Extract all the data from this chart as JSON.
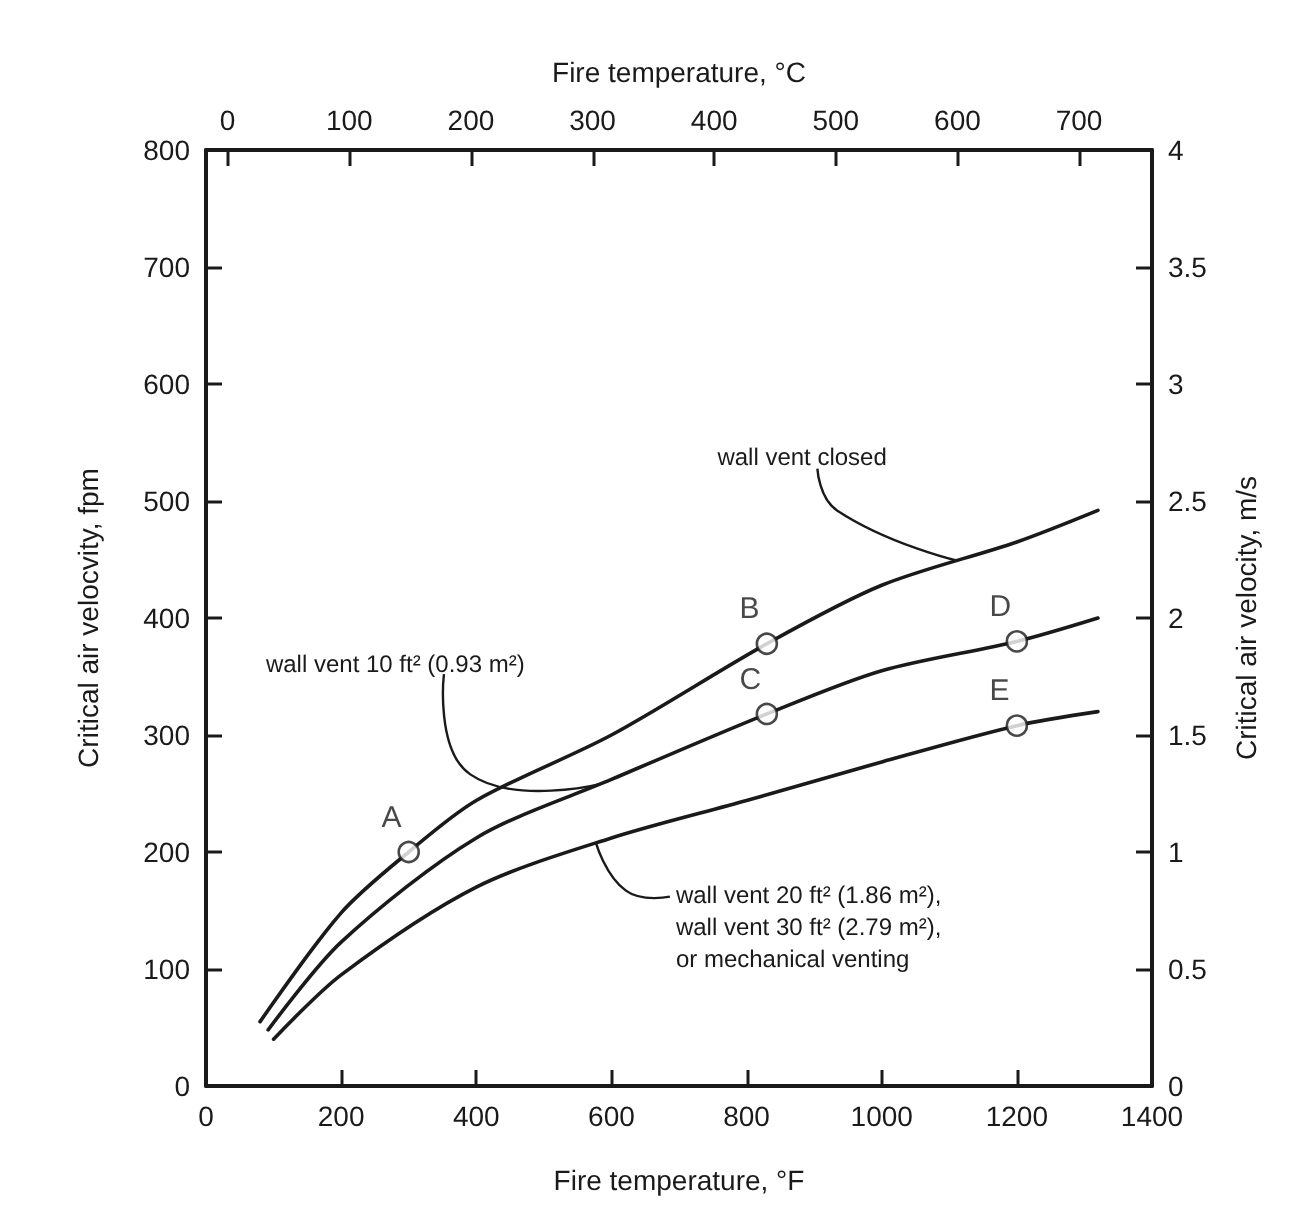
{
  "chart_data": {
    "type": "line",
    "xlabel": "Fire temperature, °F",
    "ylabel": "Critical air velocvity, fpm",
    "x2label": "Fire temperature, °C",
    "y2label": "Critical air velocity, m/s",
    "xlim": [
      0,
      1400
    ],
    "xticks": [
      0,
      200,
      400,
      600,
      800,
      1000,
      1200,
      1400
    ],
    "ylim": [
      0,
      800
    ],
    "yticks": [
      0,
      100,
      200,
      300,
      400,
      500,
      600,
      700,
      800
    ],
    "x2lim": [
      -17.8,
      760
    ],
    "x2ticks": [
      0,
      100,
      200,
      300,
      400,
      500,
      600,
      700
    ],
    "y2lim": [
      0,
      4
    ],
    "y2ticks": [
      0,
      0.5,
      1,
      1.5,
      2,
      2.5,
      3,
      3.5,
      4
    ],
    "grid": false,
    "marker": "none",
    "line_style": "solid",
    "series": [
      {
        "color": "#1a1a1a",
        "x": [
          80,
          200,
          300,
          400,
          600,
          830,
          1000,
          1200,
          1320
        ],
        "values": [
          55,
          148,
          200,
          244,
          300,
          378,
          428,
          465,
          492
        ]
      },
      {
        "color": "#1a1a1a",
        "x": [
          92,
          200,
          400,
          600,
          830,
          1000,
          1200,
          1320
        ],
        "values": [
          48,
          123,
          212,
          262,
          318,
          355,
          380,
          400
        ]
      },
      {
        "color": "#1a1a1a",
        "x": [
          100,
          200,
          400,
          600,
          800,
          1000,
          1200,
          1320
        ],
        "values": [
          40,
          95,
          170,
          212,
          244,
          277,
          308,
          320
        ]
      },
      {
        "type": "scatter",
        "marker": "circle",
        "color": "#1a1a1a",
        "x": [
          300,
          830,
          830,
          1200,
          1200
        ],
        "values": [
          200,
          378,
          318,
          380,
          308
        ],
        "value_labels": [
          "A",
          "B",
          "C",
          "D",
          "E"
        ]
      }
    ],
    "annotations": [
      {
        "text": "wall vent closed",
        "x": 1112,
        "y": 449
      },
      {
        "text": "wall vent 10 ft² (0.93 m²)",
        "x": 583,
        "y": 258
      },
      {
        "text": "wall vent 20 ft² (1.86 m²),\nwall vent 30 ft² (2.79 m²),\nor mechanical venting",
        "x": 577,
        "y": 208
      }
    ]
  }
}
